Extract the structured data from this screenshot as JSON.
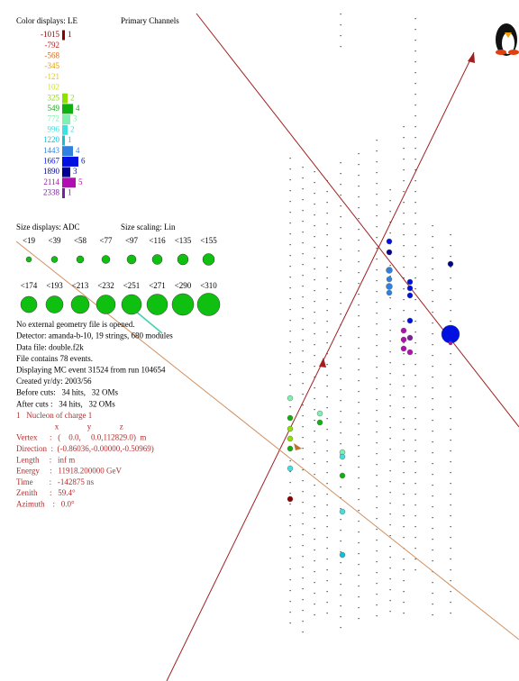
{
  "color_legend": {
    "title": "Color displays: LE",
    "channels_title": "Primary Channels",
    "rows": [
      {
        "label": "-1015",
        "count": 1,
        "color": "#8b0000"
      },
      {
        "label": "-792",
        "count": null,
        "color": "#b22222"
      },
      {
        "label": "-568",
        "count": null,
        "color": "#d2691e"
      },
      {
        "label": "-345",
        "count": null,
        "color": "#e69a00"
      },
      {
        "label": "-121",
        "count": null,
        "color": "#e0c020"
      },
      {
        "label": "102",
        "count": null,
        "color": "#c8e030"
      },
      {
        "label": "325",
        "count": 2,
        "color": "#8ee000"
      },
      {
        "label": "549",
        "count": 4,
        "color": "#10b010"
      },
      {
        "label": "772",
        "count": 3,
        "color": "#80f0b0"
      },
      {
        "label": "996",
        "count": 2,
        "color": "#40e0e0"
      },
      {
        "label": "1220",
        "count": 1,
        "color": "#10c0d8"
      },
      {
        "label": "1443",
        "count": 4,
        "color": "#3080e0"
      },
      {
        "label": "1667",
        "count": 6,
        "color": "#0010e0"
      },
      {
        "label": "1890",
        "count": 3,
        "color": "#000090"
      },
      {
        "label": "2114",
        "count": 5,
        "color": "#b010b0"
      },
      {
        "label": "2338",
        "count": 1,
        "color": "#7a1fa0"
      }
    ]
  },
  "size_legend": {
    "title": "Size displays: ADC",
    "scaling": "Size scaling: Lin",
    "labels": [
      "<19",
      "<39",
      "<58",
      "<77",
      "<97",
      "<116",
      "<135",
      "<155",
      "<174",
      "<193",
      "<213",
      "<232",
      "<251",
      "<271",
      "<290",
      "<310"
    ]
  },
  "info": [
    "No external geometry file is opened.",
    "Detector: amanda-b-10, 19 strings, 680 modules",
    "Data file: double.f2k",
    "File contains 78 events.",
    "Displaying MC event 31524 from run 104654",
    "Created yr/dy: 2003/56",
    "Before cuts:   34 hits,   32 OMs",
    "After cuts :   34 hits,   32 OMs"
  ],
  "track": [
    "1   Nucleon of charge 1",
    "                   x              y              z",
    "Vertex      :   (    0.0,     0.0,112829.0)  m",
    "Direction  :  (-0.86036,-0.00000,-0.50969)",
    "Length     :   inf m",
    "Energy     :   11918.200000 GeV",
    "Time        :   -142875 ns",
    "Zenith      :   59.4°",
    "Azimuth    :   0.0°"
  ]
}
